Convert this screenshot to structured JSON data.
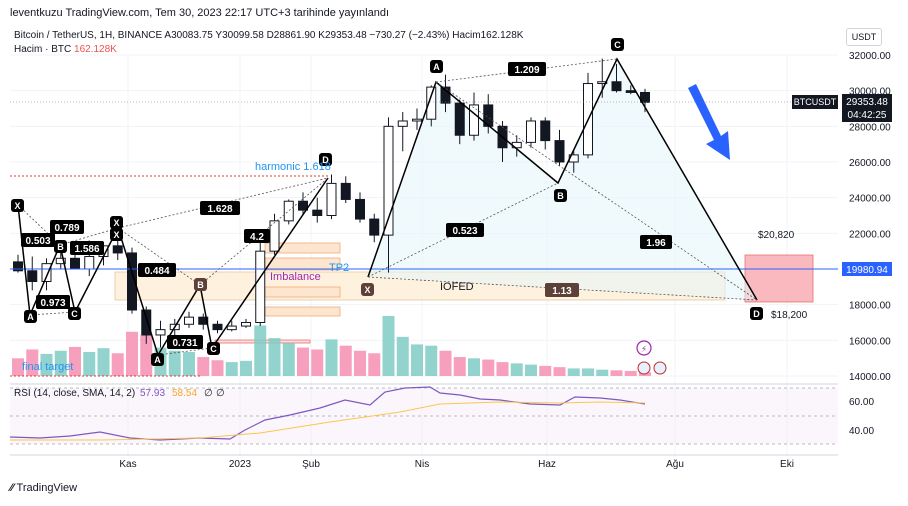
{
  "header": {
    "published": "leventkuzu TradingView.com, Tem 30, 2023 22:17 UTC+3 tarihinde yayınlandı",
    "symbol_line": "Bitcoin / TetherUS, 1H, BINANCE  A30083.75  Y30099.58  D28861.90  K29353.48  −730.27 (−2.43%)  Hacim162.128K",
    "volume_label": "Hacim · BTC",
    "volume_value": "162.128K",
    "currency": "USDT",
    "footer_brand": "TradingView"
  },
  "price_tags": {
    "ticker": "BTCUSDT",
    "price": "29353.48",
    "countdown": "04:42:25",
    "level": "19980.94"
  },
  "rsi": {
    "label": "RSI (14, close, SMA, 14, 2)",
    "v1": "57.93",
    "v2": "58.54",
    "v3": "∅",
    "v4": "∅",
    "ticks": [
      "60.00",
      "40.00"
    ]
  },
  "annotations": {
    "harmonic": "harmonic 1.618",
    "tp2": "TP2",
    "imbalance": "Imbalance",
    "iofed": "IOFED",
    "final_target": "final target",
    "target_top": "$20,820",
    "target_bottom": "$18,200",
    "ratios": {
      "r1209": "1.209",
      "r1628": "1.628",
      "r0523": "0.523",
      "r196": "1.96",
      "r113": "1.13",
      "r0503": "0.503",
      "r0789": "0.789",
      "r1586": "1.586",
      "r0484": "0.484",
      "r0973": "0.973",
      "r0731": "0.731",
      "r42": "4.2"
    },
    "points": {
      "X1": "X",
      "A1": "A",
      "B1": "B",
      "C1": "C",
      "X2": "X",
      "A2": "A",
      "B2": "B",
      "C2": "C",
      "D2": "D",
      "X3": "X",
      "A3": "A",
      "B3": "B",
      "C3": "C",
      "D3": "D",
      "Xs": "X"
    }
  },
  "chart_data": {
    "type": "candlestick",
    "y_axis": {
      "ticks": [
        32000,
        30000,
        28000,
        26000,
        24000,
        22000,
        20000,
        18000,
        16000,
        14000
      ],
      "range": [
        13500,
        33500
      ],
      "labels": [
        "32000.00",
        "30000.00",
        "28000.00",
        "26000.00",
        "24000.00",
        "22000.00",
        "20000.00",
        "18000.00",
        "16000.00",
        "14000.00"
      ]
    },
    "x_axis": {
      "labels": [
        "Kas",
        "2023",
        "Şub",
        "Nis",
        "Haz",
        "Ağu",
        "Eki"
      ]
    },
    "candles": [
      {
        "o": 20400,
        "h": 20800,
        "l": 19800,
        "c": 19900
      },
      {
        "o": 19900,
        "h": 20700,
        "l": 18800,
        "c": 19300
      },
      {
        "o": 19300,
        "h": 20600,
        "l": 18800,
        "c": 20300
      },
      {
        "o": 20300,
        "h": 21000,
        "l": 20000,
        "c": 20600
      },
      {
        "o": 20600,
        "h": 21300,
        "l": 20200,
        "c": 20000
      },
      {
        "o": 20000,
        "h": 21600,
        "l": 19600,
        "c": 20700
      },
      {
        "o": 20700,
        "h": 21500,
        "l": 20200,
        "c": 21300
      },
      {
        "o": 21300,
        "h": 21700,
        "l": 20500,
        "c": 20900
      },
      {
        "o": 20900,
        "h": 21200,
        "l": 17500,
        "c": 17700
      },
      {
        "o": 17700,
        "h": 17900,
        "l": 15800,
        "c": 16300
      },
      {
        "o": 16300,
        "h": 17100,
        "l": 15600,
        "c": 16600
      },
      {
        "o": 16600,
        "h": 17200,
        "l": 16200,
        "c": 16900
      },
      {
        "o": 16900,
        "h": 17600,
        "l": 16700,
        "c": 17300
      },
      {
        "o": 17300,
        "h": 17500,
        "l": 16600,
        "c": 16900
      },
      {
        "o": 16900,
        "h": 17100,
        "l": 16400,
        "c": 16600
      },
      {
        "o": 16600,
        "h": 17100,
        "l": 16500,
        "c": 16800
      },
      {
        "o": 16800,
        "h": 17200,
        "l": 16700,
        "c": 17000
      },
      {
        "o": 17000,
        "h": 21500,
        "l": 16800,
        "c": 21000
      },
      {
        "o": 21000,
        "h": 23100,
        "l": 20800,
        "c": 22700
      },
      {
        "o": 22700,
        "h": 23900,
        "l": 22500,
        "c": 23800
      },
      {
        "o": 23800,
        "h": 24300,
        "l": 23000,
        "c": 23300
      },
      {
        "o": 23300,
        "h": 24000,
        "l": 22600,
        "c": 23000
      },
      {
        "o": 23000,
        "h": 25300,
        "l": 22800,
        "c": 24800
      },
      {
        "o": 24800,
        "h": 25200,
        "l": 23700,
        "c": 23900
      },
      {
        "o": 23900,
        "h": 24300,
        "l": 22600,
        "c": 22800
      },
      {
        "o": 22800,
        "h": 23100,
        "l": 21500,
        "c": 21900
      },
      {
        "o": 21900,
        "h": 28500,
        "l": 19800,
        "c": 28000
      },
      {
        "o": 28000,
        "h": 28800,
        "l": 26600,
        "c": 28300
      },
      {
        "o": 28300,
        "h": 29000,
        "l": 27800,
        "c": 28400
      },
      {
        "o": 28400,
        "h": 30300,
        "l": 28000,
        "c": 30200
      },
      {
        "o": 30200,
        "h": 30900,
        "l": 28800,
        "c": 29300
      },
      {
        "o": 29300,
        "h": 29500,
        "l": 27000,
        "c": 27500
      },
      {
        "o": 27500,
        "h": 29900,
        "l": 27200,
        "c": 29200
      },
      {
        "o": 29200,
        "h": 29800,
        "l": 27600,
        "c": 28000
      },
      {
        "o": 28000,
        "h": 28300,
        "l": 26000,
        "c": 26800
      },
      {
        "o": 26800,
        "h": 27500,
        "l": 26300,
        "c": 27100
      },
      {
        "o": 27100,
        "h": 28500,
        "l": 26800,
        "c": 28300
      },
      {
        "o": 28300,
        "h": 28500,
        "l": 26700,
        "c": 27200
      },
      {
        "o": 27200,
        "h": 27800,
        "l": 25800,
        "c": 26000
      },
      {
        "o": 26000,
        "h": 26600,
        "l": 25400,
        "c": 26400
      },
      {
        "o": 26400,
        "h": 31000,
        "l": 26200,
        "c": 30400
      },
      {
        "o": 30400,
        "h": 31800,
        "l": 29600,
        "c": 30500
      },
      {
        "o": 30500,
        "h": 31500,
        "l": 29900,
        "c": 30000
      },
      {
        "o": 30000,
        "h": 30300,
        "l": 29800,
        "c": 29900
      },
      {
        "o": 29900,
        "h": 30100,
        "l": 28800,
        "c": 29350
      }
    ],
    "volume_bars": [
      28,
      42,
      35,
      40,
      46,
      38,
      44,
      36,
      70,
      65,
      45,
      40,
      38,
      30,
      25,
      22,
      24,
      80,
      60,
      52,
      45,
      42,
      58,
      48,
      40,
      36,
      95,
      62,
      50,
      48,
      40,
      30,
      28,
      26,
      22,
      20,
      18,
      16,
      14,
      12,
      12,
      10,
      9,
      8,
      6
    ]
  }
}
